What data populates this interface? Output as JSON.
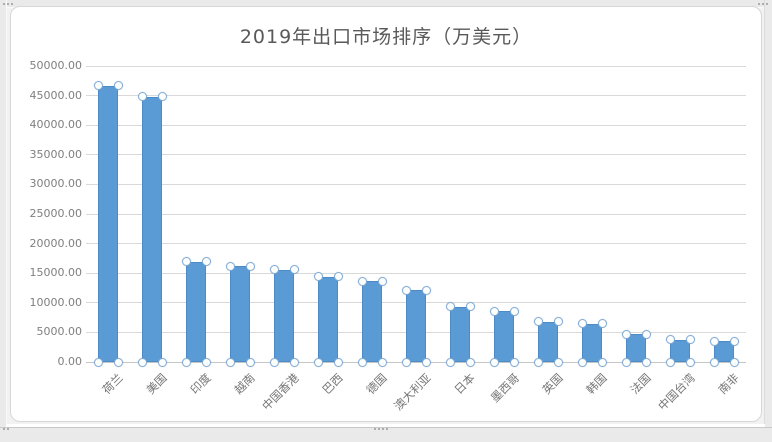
{
  "chart_data": {
    "type": "bar",
    "title": "2019年出口市场排序（万美元）",
    "categories": [
      "荷兰",
      "美国",
      "印度",
      "越南",
      "中国香港",
      "巴西",
      "德国",
      "澳大利亚",
      "日本",
      "墨西哥",
      "英国",
      "韩国",
      "法国",
      "中国台湾",
      "南非"
    ],
    "values": [
      46700,
      44800,
      16900,
      16200,
      15600,
      14400,
      13600,
      12100,
      9300,
      8600,
      6800,
      6500,
      4700,
      3800,
      3500
    ],
    "xlabel": "",
    "ylabel": "",
    "ylim": [
      0,
      50000
    ],
    "ytick_step": 5000,
    "ytick_labels": [
      "50000.00",
      "45000.00",
      "40000.00",
      "35000.00",
      "30000.00",
      "25000.00",
      "20000.00",
      "15000.00",
      "10000.00",
      "5000.00",
      "0.00"
    ],
    "grid": true,
    "legend": false,
    "bar_color": "#5b9bd5",
    "bar_border_color": "#4d8bc8",
    "selection_handle_border": "#84abd3",
    "gridline_color": "#d9d9d9",
    "axis_text_color": "#7f7f7f",
    "title_color": "#595959",
    "series_selected": true
  }
}
